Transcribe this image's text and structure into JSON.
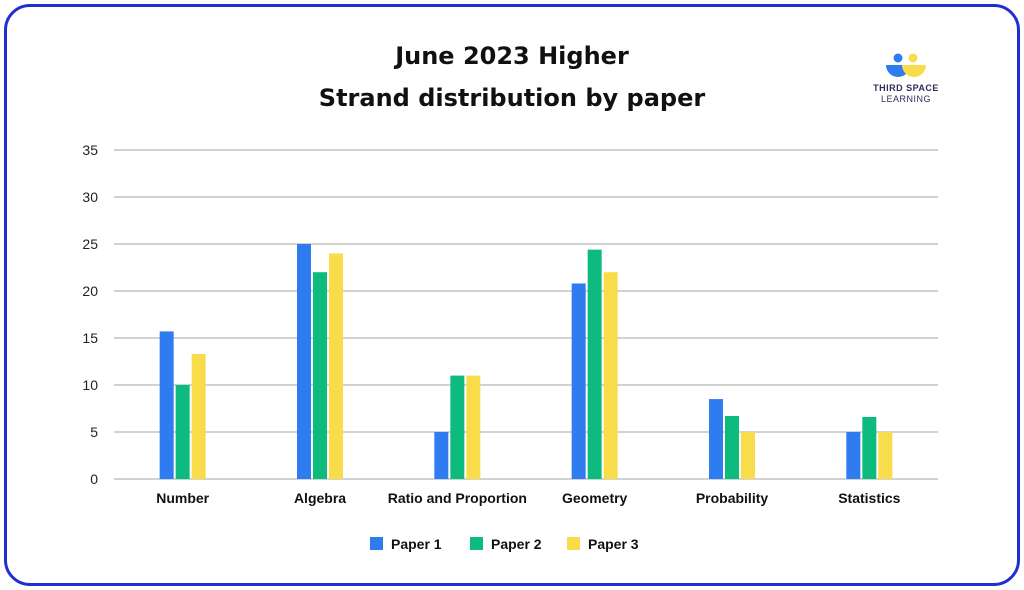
{
  "logo": {
    "line1": "THIRD SPACE",
    "line2": "LEARNING"
  },
  "chart_data": {
    "type": "bar",
    "title": [
      "June 2023 Higher",
      "Strand distribution by paper"
    ],
    "xlabel": "",
    "ylabel": "",
    "categories": [
      "Number",
      "Algebra",
      "Ratio and Proportion",
      "Geometry",
      "Probability",
      "Statistics"
    ],
    "series": [
      {
        "name": "Paper 1",
        "color": "#2f7bf0",
        "values": [
          15.7,
          25,
          5,
          20.8,
          8.5,
          5
        ]
      },
      {
        "name": "Paper 2",
        "color": "#0dbb7f",
        "values": [
          10,
          22,
          11,
          24.4,
          6.7,
          6.6
        ]
      },
      {
        "name": "Paper 3",
        "color": "#f9dc4a",
        "values": [
          13.3,
          24,
          11,
          22,
          5,
          5
        ]
      }
    ],
    "ylim": [
      0,
      35
    ],
    "yticks": [
      0,
      5,
      10,
      15,
      20,
      25,
      30,
      35
    ],
    "grid": true,
    "legend": "bottom"
  }
}
